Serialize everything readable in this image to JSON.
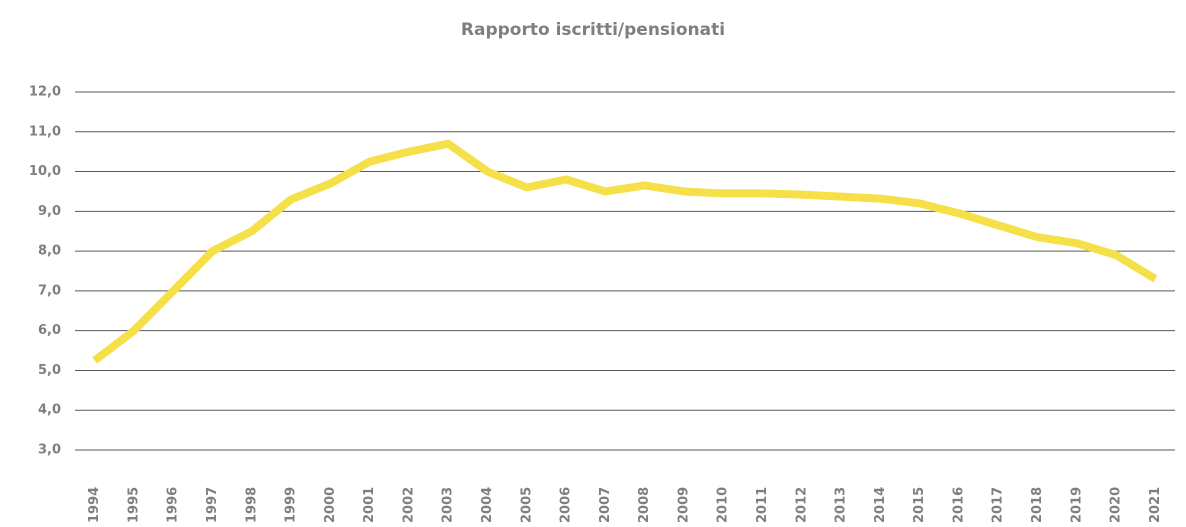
{
  "chart_data": {
    "type": "line",
    "title": "Rapporto iscritti/pensionati",
    "categories": [
      "1994",
      "1995",
      "1996",
      "1997",
      "1998",
      "1999",
      "2000",
      "2001",
      "2002",
      "2003",
      "2004",
      "2005",
      "2006",
      "2007",
      "2008",
      "2009",
      "2010",
      "2011",
      "2012",
      "2013",
      "2014",
      "2015",
      "2016",
      "2017",
      "2018",
      "2019",
      "2020",
      "2021"
    ],
    "series": [
      {
        "name": "Rapporto iscritti/pensionati",
        "color": "#f5e04a",
        "values": [
          5.25,
          6.0,
          7.0,
          8.0,
          8.5,
          9.3,
          9.7,
          10.25,
          10.5,
          10.7,
          10.0,
          9.6,
          9.8,
          9.5,
          9.65,
          9.5,
          9.45,
          9.45,
          9.42,
          9.37,
          9.32,
          9.2,
          8.95,
          8.65,
          8.35,
          8.2,
          7.9,
          7.3
        ]
      }
    ],
    "ylim": [
      3,
      12
    ],
    "yticks": [
      {
        "value": 3,
        "label": "3,0"
      },
      {
        "value": 4,
        "label": "4,0"
      },
      {
        "value": 5,
        "label": "5,0"
      },
      {
        "value": 6,
        "label": "6,0"
      },
      {
        "value": 7,
        "label": "7,0"
      },
      {
        "value": 8,
        "label": "8,0"
      },
      {
        "value": 9,
        "label": "9,0"
      },
      {
        "value": 10,
        "label": "10,0"
      },
      {
        "value": 11,
        "label": "11,0"
      },
      {
        "value": 12,
        "label": "12,0"
      }
    ],
    "grid": true
  }
}
